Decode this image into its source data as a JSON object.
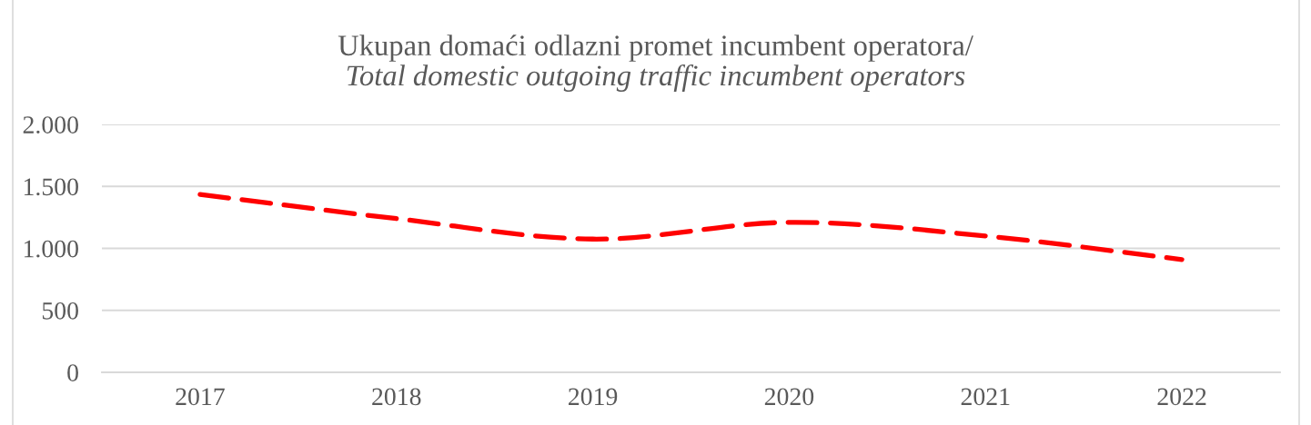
{
  "chart_data": {
    "type": "line",
    "title": "Ukupan domaći odlazni promet incumbent operatora/",
    "subtitle": "Total domestic outgoing traffic incumbent operators",
    "categories": [
      "2017",
      "2018",
      "2019",
      "2020",
      "2021",
      "2022"
    ],
    "series": [
      {
        "color": "#ff0000",
        "values": [
          1435,
          1240,
          1075,
          1210,
          1100,
          910
        ]
      }
    ],
    "ylim": [
      0,
      2000
    ],
    "yticks": [
      0,
      {
        "value": 500,
        "label": "500"
      },
      {
        "value": 1000,
        "label": "1.000"
      },
      {
        "value": 1500,
        "label": "1.500"
      },
      {
        "value": 2000,
        "label": "2.000"
      }
    ],
    "grid": "y",
    "marker": "none",
    "line_style": "dashed"
  }
}
